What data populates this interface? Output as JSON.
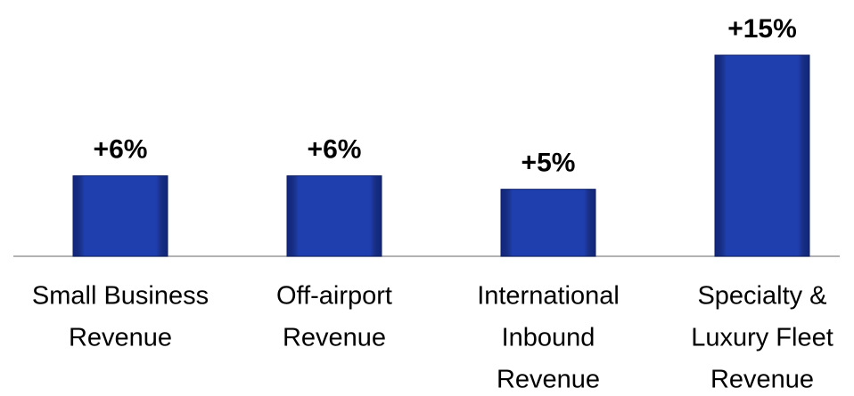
{
  "chart_data": {
    "type": "bar",
    "categories": [
      [
        "Small Business",
        "Revenue"
      ],
      [
        "Off-airport",
        "Revenue"
      ],
      [
        "International",
        "Inbound",
        "Revenue"
      ],
      [
        "Specialty &",
        "Luxury Fleet",
        "Revenue"
      ]
    ],
    "values": [
      6,
      6,
      5,
      15
    ],
    "value_labels": [
      "+6%",
      "+6%",
      "+5%",
      "+15%"
    ],
    "color": "#1f3fae",
    "ylim": [
      0,
      15
    ]
  }
}
